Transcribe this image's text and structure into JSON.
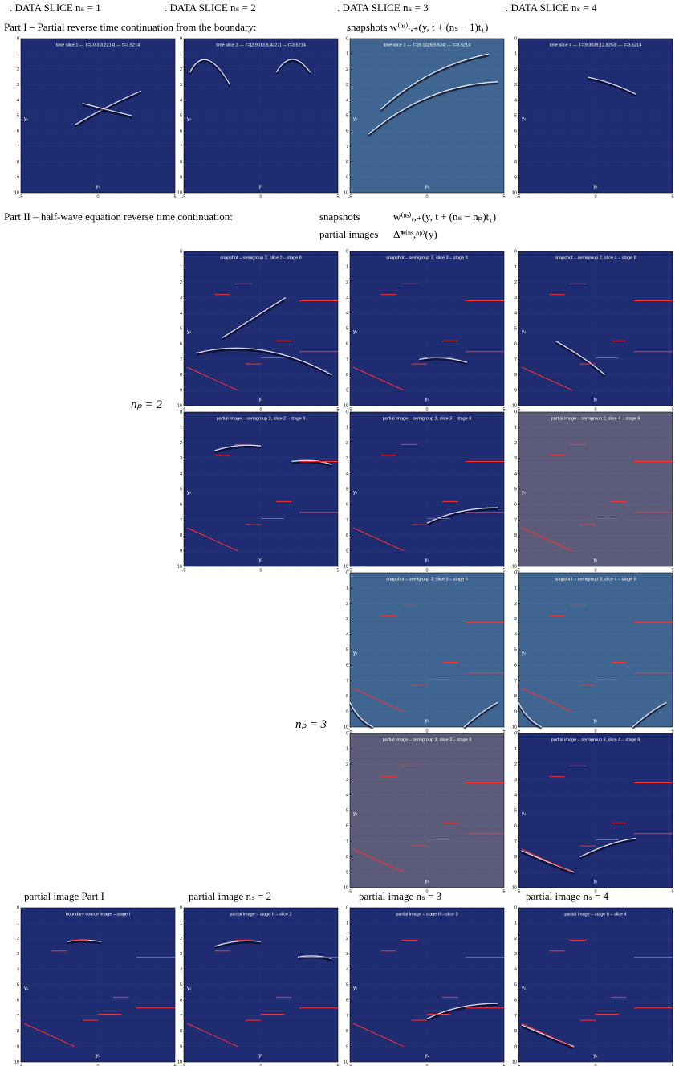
{
  "header": {
    "columns": [
      ". DATA SLICE nₛ = 1",
      ". DATA SLICE nₛ = 2",
      ". DATA SLICE nₛ = 3",
      ". DATA SLICE nₛ = 4"
    ]
  },
  "part1": {
    "label": "Part I – Partial reverse time continuation from the boundary:",
    "snapshots": "snapshots w⁽ⁿˢ⁾ᵣ,₊(y, t + (nₛ − 1)t₁)"
  },
  "part2": {
    "label": "Part II – half-wave equation reverse time continuation:",
    "snapshots": "snapshots",
    "snapshots_formula": "w⁽ⁿˢ⁾ᵣ,₊(y, t + (nₛ − nₚ)t₁)",
    "partial_images": "partial images",
    "partial_formula": "Δ̃*⁽ⁿˢ,ⁿᵖ⁾(y)"
  },
  "np_labels": [
    "nₚ = 2",
    "nₚ = 3"
  ],
  "bottom_labels": [
    "partial image Part I",
    "partial image nₛ = 2",
    "partial image nₛ = 3",
    "partial image nₛ = 4"
  ],
  "axes": {
    "xticks": [
      -5,
      0,
      5
    ],
    "yticks": [
      0,
      1,
      2,
      3,
      4,
      5,
      6,
      7,
      8,
      9,
      10
    ],
    "xlabel": "y₁",
    "ylabel": "y₂"
  },
  "panels": [
    {
      "title": "time slice 1 --- T=[-0.3,3.2214] --- τ=3.5214"
    },
    {
      "title": "time slice 2 --- T=[2.9013,6.4227] --- τ=3.5214"
    },
    {
      "title": "time slice 3 --- T=[6.1026,9.624] --- τ=3.5214"
    },
    {
      "title": "time slice 4 --- T=[9.3039,12.8253] --- τ=3.5214"
    },
    {
      "title": "snapshot – semigroup 2, slice 2 – stage II"
    },
    {
      "title": "snapshot – semigroup 2, slice 3 – stage II"
    },
    {
      "title": "snapshot – semigroup 2, slice 4 – stage II"
    },
    {
      "title": "partial image – semigroup 2, slice 2 – stage II"
    },
    {
      "title": "partial image – semigroup 2, slice 3 – stage II"
    },
    {
      "title": "partial image – semigroup 2, slice 4 – stage II"
    },
    {
      "title": "snapshot – semigroup 3, slice 3 – stage II"
    },
    {
      "title": "snapshot – semigroup 3, slice 4 – stage II"
    },
    {
      "title": "partial image – semigroup 3, slice 3 – stage II"
    },
    {
      "title": "partial image – semigroup 3, slice 4 – stage II"
    },
    {
      "title": "boundary source image – stage I"
    },
    {
      "title": "partial image – stage II – slice 2"
    },
    {
      "title": "partial image – stage II – slice 3"
    },
    {
      "title": "partial image – stage II – slice 4"
    }
  ]
}
